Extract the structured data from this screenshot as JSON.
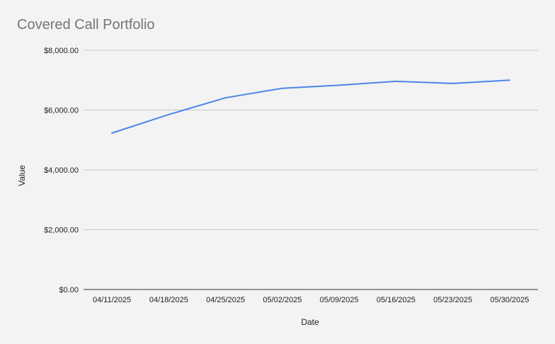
{
  "chart_data": {
    "type": "line",
    "title": "Covered Call Portfolio",
    "xlabel": "Date",
    "ylabel": "Value",
    "ylim": [
      0,
      8000
    ],
    "y_ticks": [
      0,
      2000,
      4000,
      6000,
      8000
    ],
    "y_tick_labels": [
      "$0.00",
      "$2,000.00",
      "$4,000.00",
      "$6,000.00",
      "$8,000.00"
    ],
    "categories": [
      "04/11/2025",
      "04/18/2025",
      "04/25/2025",
      "05/02/2025",
      "05/09/2025",
      "05/16/2025",
      "05/23/2025",
      "05/30/2025"
    ],
    "series": [
      {
        "values": [
          5230,
          5850,
          6410,
          6730,
          6830,
          6960,
          6890,
          7000
        ],
        "color": "#4a86e8"
      }
    ],
    "grid": true,
    "legend": "none"
  }
}
